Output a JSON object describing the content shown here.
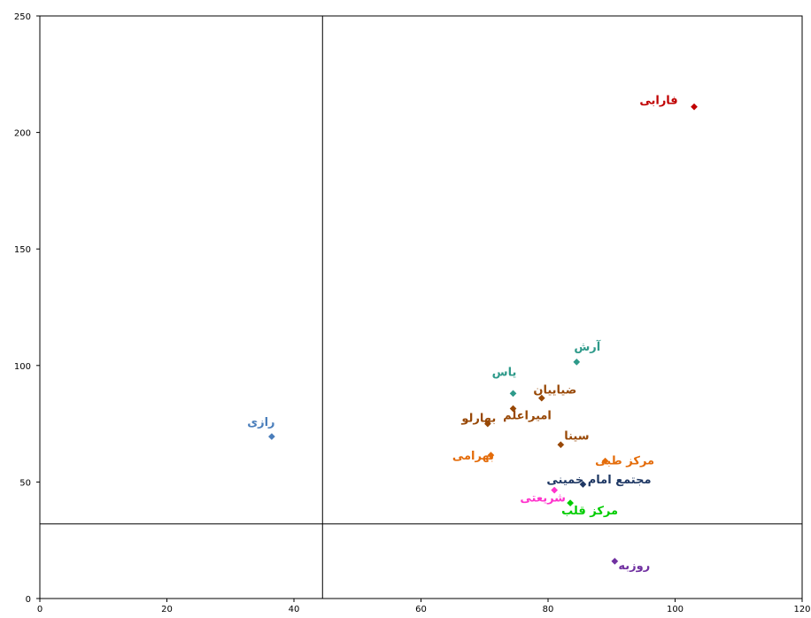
{
  "chart_data": {
    "type": "scatter",
    "title": "",
    "xlabel": "",
    "ylabel": "",
    "xlim": [
      0,
      120
    ],
    "ylim": [
      0,
      250
    ],
    "xticks": [
      0,
      20,
      40,
      60,
      80,
      100,
      120
    ],
    "yticks": [
      0,
      50,
      100,
      150,
      200,
      250
    ],
    "grid": false,
    "reference_lines": {
      "x": 44.5,
      "y": 32
    },
    "points": [
      {
        "label": "فارابی",
        "x": 103,
        "y": 211,
        "color": "#c00000"
      },
      {
        "label": "رازی",
        "x": 36.5,
        "y": 69.5,
        "color": "#4a7ebb"
      },
      {
        "label": "آرش",
        "x": 84.5,
        "y": 101.5,
        "color": "#2e9a8a"
      },
      {
        "label": "یاس",
        "x": 74.5,
        "y": 88,
        "color": "#2e9a8a"
      },
      {
        "label": "ضیاییان",
        "x": 79,
        "y": 86,
        "color": "#984806"
      },
      {
        "label": "امیراعلم",
        "x": 74.5,
        "y": 81.5,
        "color": "#984806"
      },
      {
        "label": "بهارلو",
        "x": 70.5,
        "y": 75,
        "color": "#984806"
      },
      {
        "label": "سینا",
        "x": 82,
        "y": 66,
        "color": "#984806"
      },
      {
        "label": "بهرامی",
        "x": 71,
        "y": 61.5,
        "color": "#e46c0a"
      },
      {
        "label": "مرکز طبی",
        "x": 89,
        "y": 59,
        "color": "#e46c0a"
      },
      {
        "label": "مجتمع امام خمینی",
        "x": 85.5,
        "y": 49,
        "color": "#1f3864"
      },
      {
        "label": "شریعتی",
        "x": 81,
        "y": 46.5,
        "color": "#ff33cc"
      },
      {
        "label": "مرکز قلب",
        "x": 83.5,
        "y": 41,
        "color": "#00cc00"
      },
      {
        "label": "روزبه",
        "x": 90.5,
        "y": 16,
        "color": "#7030a0"
      }
    ]
  }
}
